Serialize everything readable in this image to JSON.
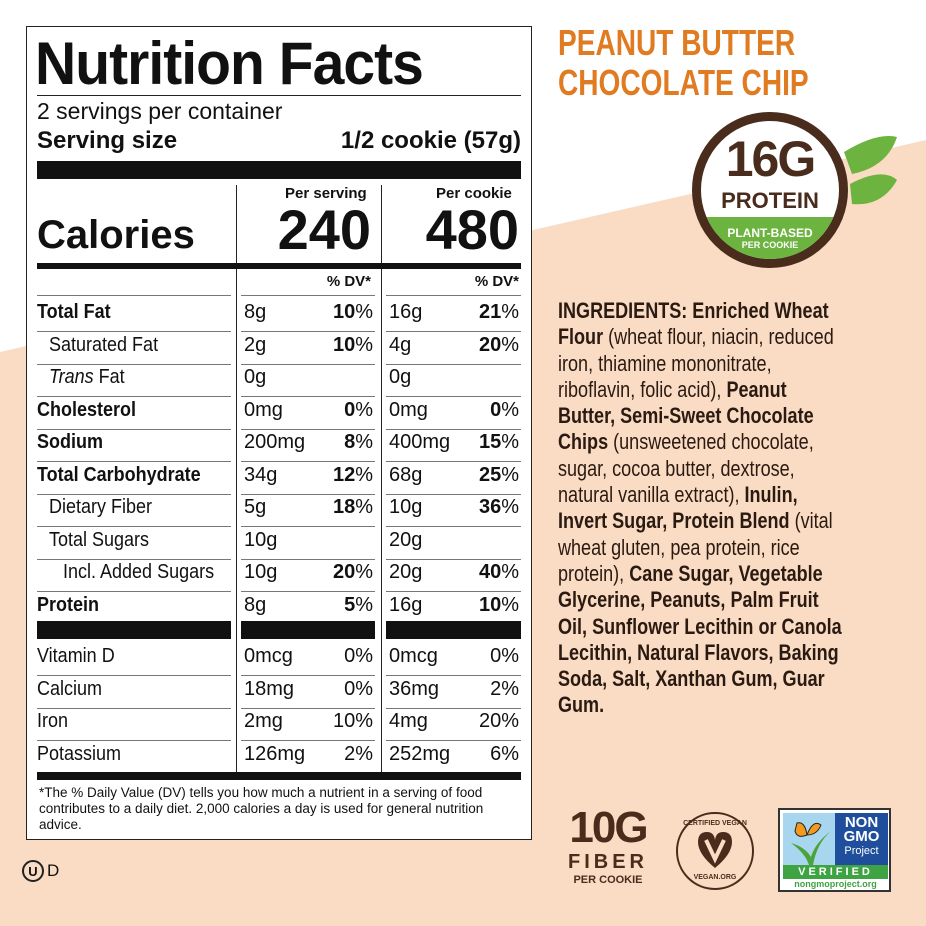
{
  "label": {
    "title": "Nutrition Facts",
    "servings": "2 servings per container",
    "serving_size_label": "Serving size",
    "serving_size_value": "1/2 cookie (57g)",
    "per_serving": "Per serving",
    "per_cookie": "Per cookie",
    "calories_label": "Calories",
    "calories_serving": "240",
    "calories_cookie": "480",
    "dv_header": "% DV*",
    "nutrients": [
      {
        "name": "Total Fat",
        "bold": true,
        "indent": 0,
        "a1": "8g",
        "d1": "10",
        "a2": "16g",
        "d2": "21"
      },
      {
        "name": "Saturated Fat",
        "bold": false,
        "indent": 1,
        "a1": "2g",
        "d1": "10",
        "a2": "4g",
        "d2": "20"
      },
      {
        "name": "Trans Fat",
        "bold": false,
        "indent": 1,
        "italic_word": "Trans",
        "a1": "0g",
        "d1": "",
        "a2": "0g",
        "d2": ""
      },
      {
        "name": "Cholesterol",
        "bold": true,
        "indent": 0,
        "a1": "0mg",
        "d1": "0",
        "a2": "0mg",
        "d2": "0"
      },
      {
        "name": "Sodium",
        "bold": true,
        "indent": 0,
        "a1": "200mg",
        "d1": "8",
        "a2": "400mg",
        "d2": "15"
      },
      {
        "name": "Total Carbohydrate",
        "bold": true,
        "indent": 0,
        "a1": "34g",
        "d1": "12",
        "a2": "68g",
        "d2": "25"
      },
      {
        "name": "Dietary Fiber",
        "bold": false,
        "indent": 1,
        "a1": "5g",
        "d1": "18",
        "a2": "10g",
        "d2": "36"
      },
      {
        "name": "Total Sugars",
        "bold": false,
        "indent": 1,
        "a1": "10g",
        "d1": "",
        "a2": "20g",
        "d2": ""
      },
      {
        "name": "Incl. Added Sugars",
        "bold": false,
        "indent": 2,
        "a1": "10g",
        "d1": "20",
        "a2": "20g",
        "d2": "40"
      },
      {
        "name": "Protein",
        "bold": true,
        "indent": 0,
        "a1": "8g",
        "d1": "5",
        "a2": "16g",
        "d2": "10"
      }
    ],
    "vitamins": [
      {
        "name": "Vitamin D",
        "a1": "0mcg",
        "d1": "0%",
        "a2": "0mcg",
        "d2": "0%"
      },
      {
        "name": "Calcium",
        "a1": "18mg",
        "d1": "0%",
        "a2": "36mg",
        "d2": "2%"
      },
      {
        "name": "Iron",
        "a1": "2mg",
        "d1": "10%",
        "a2": "4mg",
        "d2": "20%"
      },
      {
        "name": "Potassium",
        "a1": "126mg",
        "d1": "2%",
        "a2": "252mg",
        "d2": "6%"
      }
    ],
    "footnote": "*The % Daily Value (DV) tells you how much a nutrient in a serving of food contributes to a daily diet. 2,000 calories a day is used for general nutrition advice."
  },
  "kosher": "D",
  "product": {
    "line1": "PEANUT BUTTER",
    "line2": "CHOCOLATE CHIP"
  },
  "protein_badge": {
    "amount": "16G",
    "label": "PROTEIN",
    "sub1": "PLANT-BASED",
    "sub2": "PER COOKIE"
  },
  "ingredients": [
    [
      {
        "t": "INGREDIENTS: Enriched Wheat",
        "b": true
      }
    ],
    [
      {
        "t": "Flour",
        "b": true
      },
      {
        "t": " (wheat flour, niacin, reduced",
        "b": false
      }
    ],
    [
      {
        "t": "iron, thiamine mononitrate,",
        "b": false
      }
    ],
    [
      {
        "t": "riboflavin, folic acid), ",
        "b": false
      },
      {
        "t": "Peanut",
        "b": true
      }
    ],
    [
      {
        "t": "Butter, Semi-Sweet Chocolate",
        "b": true
      }
    ],
    [
      {
        "t": "Chips",
        "b": true
      },
      {
        "t": " (unsweetened chocolate,",
        "b": false
      }
    ],
    [
      {
        "t": "sugar, cocoa butter, dextrose,",
        "b": false
      }
    ],
    [
      {
        "t": "natural vanilla extract), ",
        "b": false
      },
      {
        "t": "Inulin,",
        "b": true
      }
    ],
    [
      {
        "t": "Invert Sugar, Protein Blend",
        "b": true
      },
      {
        "t": " (vital",
        "b": false
      }
    ],
    [
      {
        "t": "wheat gluten, pea protein, rice",
        "b": false
      }
    ],
    [
      {
        "t": "protein), ",
        "b": false
      },
      {
        "t": "Cane Sugar, Vegetable",
        "b": true
      }
    ],
    [
      {
        "t": "Glycerine, Peanuts, Palm Fruit",
        "b": true
      }
    ],
    [
      {
        "t": "Oil, Sunflower Lecithin or Canola",
        "b": true
      }
    ],
    [
      {
        "t": "Lecithin, Natural Flavors, Baking",
        "b": true
      }
    ],
    [
      {
        "t": "Soda, Salt, Xanthan Gum, Guar",
        "b": true
      }
    ],
    [
      {
        "t": "Gum.",
        "b": true
      }
    ]
  ],
  "fiber_badge": {
    "amount": "10G",
    "label": "FIBER",
    "sub": "PER COOKIE"
  },
  "vegan_badge": {
    "top": "CERTIFIED VEGAN",
    "bottom": "VEGAN.ORG"
  },
  "nongmo": {
    "l1": "NON",
    "l2": "GMO",
    "l3": "Project",
    "verified": "VERIFIED",
    "url": "nongmoproject.org"
  },
  "colors": {
    "orange": "#e07b22",
    "brown": "#4a2c1d",
    "green": "#6cb33f",
    "peach": "#f9dcc3"
  }
}
